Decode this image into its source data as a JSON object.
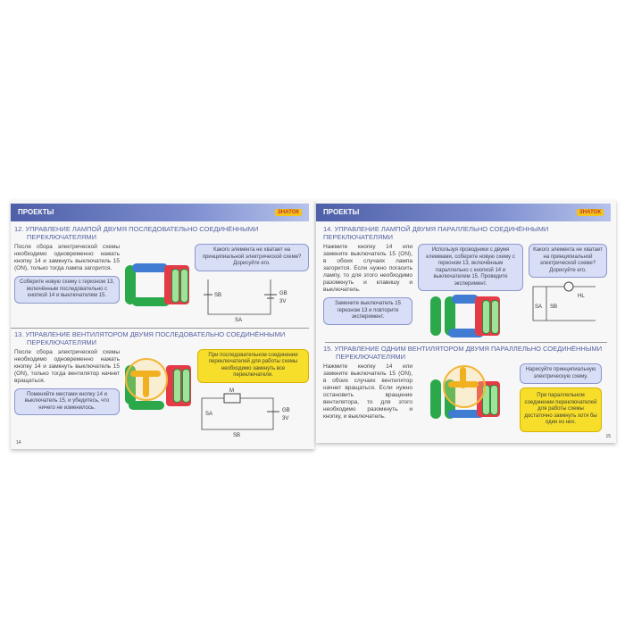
{
  "left": {
    "header": "ПРОЕКТЫ",
    "logo": "ЗНАТОК",
    "p12": {
      "title": "12. УПРАВЛЕНИЕ ЛАМПОЙ ДВУМЯ ПОСЛЕДОВАТЕЛЬНО СОЕДИНЁННЫМИ",
      "title2": "ПЕРЕКЛЮЧАТЕЛЯМИ",
      "text": "После сбора электрической схемы необходимо одновременно нажать кнопку 14 и замкнуть выключатель 15 (ON), только тогда лампа загорится.",
      "question": "Какого элемента не хватает на принципиальной электрической схеме? Дорисуйте его.",
      "task": "Соберите новую схему с герконом 13, включённым последовательно с кнопкой 14 и выключателем 15.",
      "labels": {
        "sb": "SB",
        "gb": "GB",
        "v": "3V",
        "sa": "SA"
      }
    },
    "p13": {
      "title": "13. УПРАВЛЕНИЕ ВЕНТИЛЯТОРОМ ДВУМЯ ПОСЛЕДОВАТЕЛЬНО СОЕДИНЁННЫМИ",
      "title2": "ПЕРЕКЛЮЧАТЕЛЯМИ",
      "text": "После сбора электрической схемы необходимо одновременно нажать кнопку 14 и замкнуть выключатель 15 (ON), только тогда вентилятор начнет вращаться.",
      "note": "При последовательном соединении переключателей для работы схемы необходимо замкнуть все переключатели.",
      "task": "Поменяйте местами кнопку 14 и выключатель 15, и убедитесь, что ничего не изменилось.",
      "labels": {
        "m": "M",
        "sa": "SA",
        "gb": "GB",
        "v": "3V",
        "sb": "SB"
      }
    },
    "page_number": "14"
  },
  "right": {
    "header": "ПРОЕКТЫ",
    "logo": "ЗНАТОК",
    "p14": {
      "title": "14. УПРАВЛЕНИЕ ЛАМПОЙ ДВУМЯ ПАРАЛЛЕЛЬНО СОЕДИНЁННЫМИ ПЕРЕКЛЮЧАТЕЛЯМИ",
      "text": "Нажмите кнопку 14 или замкните выключатель 15 (ON), в обоих случаях лампа загорится. Если нужно погасить лампу, то для этого необходимо разомкнуть и клавишу и выключатель.",
      "task1": "Используя проводники с двумя клеммами, соберите новую схему с герконом 13, включённым параллельно с кнопкой 14 и выключателем 15. Проведите эксперимент.",
      "question": "Какого элемента не хватает на принципиальной электрической схеме? Дорисуйте его.",
      "task2": "Замените выключатель 15 герконом 13 и повторите эксперимент.",
      "labels": {
        "hl": "HL",
        "sa": "SA",
        "sb": "SB"
      }
    },
    "p15": {
      "title": "15. УПРАВЛЕНИЕ ОДНИМ ВЕНТИЛЯТОРОМ ДВУМЯ ПАРАЛЛЕЛЬНО СОЕДИНЁННЫМИ",
      "title2": "ПЕРЕКЛЮЧАТЕЛЯМИ",
      "text": "Нажмите кнопку 14 или замкните выключатель 15 (ON), в обоих случаях вентилятор начнет вращаться. Если нужно остановить вращение вентилятора, то для этого необходимо разомкнуть и кнопку, и выключатель.",
      "task": "Нарисуйте принципиальную электрическую схему.",
      "note": "При параллельном соединении переключателей для работы схемы достаточно замкнуть хотя бы один из них."
    },
    "page_number": "15"
  }
}
